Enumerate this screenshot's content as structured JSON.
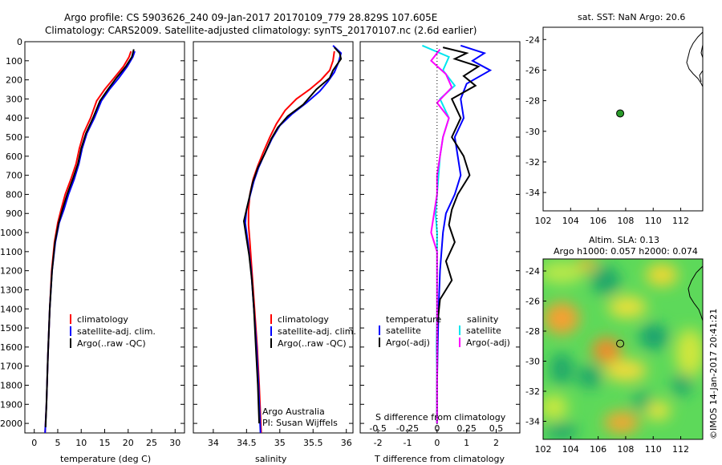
{
  "header": {
    "title_line1": "Argo profile: CS 5903626_240 09-Jan-2017 20170109_779 28.829S 107.605E",
    "title_line2": "Climatology: CARS2009. Satellite-adjusted climatology: synTS_20170107.nc (2.6d earlier)"
  },
  "colors": {
    "climatology": "#ff0000",
    "satellite": "#0000ff",
    "argo": "#000000",
    "sat_salinity": "#00e5ee",
    "argo_salinity": "#ff00ff",
    "float_marker": "#2a9a2a"
  },
  "chart_data": [
    {
      "type": "line",
      "id": "temperature",
      "xlabel": "temperature (deg C)",
      "ylabel": "",
      "xlim": [
        -2,
        32
      ],
      "ylim": [
        2050,
        0
      ],
      "xticks": [
        0,
        5,
        10,
        15,
        20,
        25,
        30
      ],
      "yticks": [
        0,
        100,
        200,
        300,
        400,
        500,
        600,
        700,
        800,
        900,
        1000,
        1100,
        1200,
        1300,
        1400,
        1500,
        1600,
        1700,
        1800,
        1900,
        2000
      ],
      "legend": [
        "climatology",
        "satellite-adj. clim.",
        "Argo(..raw -QC)"
      ],
      "series": [
        {
          "name": "climatology",
          "color": "#ff0000",
          "points": [
            [
              20.6,
              50
            ],
            [
              20.2,
              80
            ],
            [
              19.0,
              130
            ],
            [
              17.0,
              190
            ],
            [
              15.0,
              250
            ],
            [
              13.3,
              310
            ],
            [
              12.0,
              400
            ],
            [
              10.5,
              480
            ],
            [
              9.6,
              560
            ],
            [
              8.9,
              640
            ],
            [
              7.8,
              720
            ],
            [
              6.6,
              800
            ],
            [
              5.7,
              880
            ],
            [
              5.0,
              950
            ],
            [
              4.3,
              1050
            ],
            [
              3.7,
              1200
            ],
            [
              3.3,
              1400
            ],
            [
              2.9,
              1650
            ],
            [
              2.6,
              1900
            ],
            [
              2.3,
              2050
            ]
          ]
        },
        {
          "name": "satellite-adj. clim.",
          "color": "#0000ff",
          "points": [
            [
              21.4,
              50
            ],
            [
              21.0,
              80
            ],
            [
              19.8,
              130
            ],
            [
              18.0,
              190
            ],
            [
              16.0,
              250
            ],
            [
              14.3,
              310
            ],
            [
              12.8,
              400
            ],
            [
              11.2,
              480
            ],
            [
              10.2,
              560
            ],
            [
              9.5,
              640
            ],
            [
              8.5,
              720
            ],
            [
              7.3,
              800
            ],
            [
              6.3,
              880
            ],
            [
              5.3,
              950
            ],
            [
              4.5,
              1050
            ],
            [
              3.8,
              1200
            ],
            [
              3.3,
              1400
            ],
            [
              2.9,
              1650
            ],
            [
              2.6,
              1900
            ],
            [
              2.3,
              2050
            ]
          ]
        },
        {
          "name": "Argo(..raw -QC)",
          "color": "#000000",
          "points": [
            [
              21.2,
              40
            ],
            [
              20.8,
              80
            ],
            [
              19.5,
              130
            ],
            [
              17.5,
              190
            ],
            [
              15.7,
              250
            ],
            [
              14.0,
              310
            ],
            [
              12.5,
              400
            ],
            [
              11.0,
              480
            ],
            [
              10.0,
              560
            ],
            [
              9.3,
              640
            ],
            [
              8.2,
              720
            ],
            [
              7.0,
              800
            ],
            [
              6.0,
              880
            ],
            [
              5.2,
              950
            ],
            [
              4.4,
              1050
            ],
            [
              3.8,
              1200
            ],
            [
              3.3,
              1400
            ],
            [
              2.9,
              1650
            ],
            [
              2.6,
              1900
            ],
            [
              2.4,
              2020
            ]
          ]
        }
      ]
    },
    {
      "type": "line",
      "id": "salinity",
      "xlabel": "salinity",
      "ylabel": "",
      "xlim": [
        33.7,
        36.1
      ],
      "ylim": [
        2050,
        0
      ],
      "xticks": [
        34,
        34.5,
        35,
        35.5,
        36
      ],
      "xticklabels": [
        "34",
        "34.5",
        "35",
        "35.5",
        "36"
      ],
      "legend": [
        "climatology",
        "satellite-adj. clim.",
        "Argo(..raw -QC)"
      ],
      "annotations": [
        "Argo Australia",
        "PI: Susan Wijffels"
      ],
      "series": [
        {
          "name": "climatology",
          "color": "#ff0000",
          "points": [
            [
              35.82,
              50
            ],
            [
              35.8,
              100
            ],
            [
              35.75,
              150
            ],
            [
              35.62,
              200
            ],
            [
              35.45,
              250
            ],
            [
              35.25,
              300
            ],
            [
              35.08,
              360
            ],
            [
              34.95,
              430
            ],
            [
              34.85,
              500
            ],
            [
              34.75,
              580
            ],
            [
              34.67,
              650
            ],
            [
              34.6,
              720
            ],
            [
              34.55,
              800
            ],
            [
              34.53,
              880
            ],
            [
              34.53,
              960
            ],
            [
              34.55,
              1050
            ],
            [
              34.58,
              1200
            ],
            [
              34.62,
              1400
            ],
            [
              34.66,
              1600
            ],
            [
              34.69,
              1800
            ],
            [
              34.72,
              2050
            ]
          ]
        },
        {
          "name": "satellite-adj. clim.",
          "color": "#0000ff",
          "points": [
            [
              35.8,
              20
            ],
            [
              35.92,
              60
            ],
            [
              35.88,
              110
            ],
            [
              35.82,
              160
            ],
            [
              35.72,
              210
            ],
            [
              35.6,
              260
            ],
            [
              35.4,
              320
            ],
            [
              35.18,
              380
            ],
            [
              35.0,
              440
            ],
            [
              34.88,
              510
            ],
            [
              34.77,
              590
            ],
            [
              34.68,
              660
            ],
            [
              34.61,
              730
            ],
            [
              34.55,
              810
            ],
            [
              34.5,
              880
            ],
            [
              34.48,
              950
            ],
            [
              34.52,
              1050
            ],
            [
              34.57,
              1200
            ],
            [
              34.61,
              1400
            ],
            [
              34.65,
              1600
            ],
            [
              34.68,
              1800
            ],
            [
              34.71,
              2050
            ]
          ]
        },
        {
          "name": "Argo(..raw -QC)",
          "color": "#000000",
          "points": [
            [
              35.82,
              30
            ],
            [
              35.9,
              60
            ],
            [
              35.92,
              90
            ],
            [
              35.8,
              150
            ],
            [
              35.75,
              190
            ],
            [
              35.55,
              250
            ],
            [
              35.35,
              330
            ],
            [
              35.12,
              390
            ],
            [
              34.97,
              450
            ],
            [
              34.87,
              510
            ],
            [
              34.77,
              590
            ],
            [
              34.67,
              660
            ],
            [
              34.59,
              740
            ],
            [
              34.54,
              820
            ],
            [
              34.5,
              880
            ],
            [
              34.46,
              940
            ],
            [
              34.49,
              1010
            ],
            [
              34.54,
              1120
            ],
            [
              34.58,
              1250
            ],
            [
              34.61,
              1400
            ],
            [
              34.64,
              1600
            ],
            [
              34.67,
              1800
            ],
            [
              34.69,
              2000
            ]
          ]
        }
      ]
    },
    {
      "type": "line",
      "id": "difference",
      "xlabel": "T difference from climatology",
      "xlabel_top": "S difference from climatology",
      "xlim": [
        -2.6,
        2.8
      ],
      "ylim": [
        2050,
        0
      ],
      "xticks": [
        -2,
        -1,
        0,
        1,
        2
      ],
      "top_ticks": [
        -0.5,
        -0.25,
        0,
        0.25,
        0.5
      ],
      "legend_left": {
        "heading": "temperature",
        "items": [
          "satellite",
          "Argo(-adj)"
        ]
      },
      "legend_right": {
        "heading": "salinity",
        "items": [
          "satellite",
          "Argo(-adj)"
        ]
      },
      "series": [
        {
          "name": "temperature satellite",
          "color": "#0000ff",
          "points": [
            [
              0.8,
              20
            ],
            [
              1.6,
              60
            ],
            [
              1.2,
              100
            ],
            [
              1.8,
              150
            ],
            [
              1.0,
              220
            ],
            [
              0.8,
              300
            ],
            [
              0.9,
              400
            ],
            [
              0.6,
              500
            ],
            [
              0.7,
              600
            ],
            [
              0.8,
              700
            ],
            [
              0.6,
              800
            ],
            [
              0.3,
              900
            ],
            [
              0.2,
              1000
            ],
            [
              0.1,
              1200
            ],
            [
              0.05,
              1400
            ],
            [
              0.02,
              1600
            ],
            [
              0,
              1800
            ],
            [
              0,
              2000
            ]
          ]
        },
        {
          "name": "temperature Argo(-adj)",
          "color": "#000000",
          "points": [
            [
              0.2,
              30
            ],
            [
              1.0,
              60
            ],
            [
              0.6,
              90
            ],
            [
              1.4,
              130
            ],
            [
              0.9,
              180
            ],
            [
              1.3,
              230
            ],
            [
              0.5,
              300
            ],
            [
              0.8,
              400
            ],
            [
              0.5,
              500
            ],
            [
              0.9,
              600
            ],
            [
              1.1,
              700
            ],
            [
              0.7,
              800
            ],
            [
              0.5,
              880
            ],
            [
              0.4,
              960
            ],
            [
              0.6,
              1050
            ],
            [
              0.3,
              1150
            ],
            [
              0.5,
              1250
            ],
            [
              0.1,
              1350
            ],
            [
              0.0,
              1500
            ],
            [
              0.0,
              1700
            ],
            [
              0.0,
              1900
            ],
            [
              0.0,
              2000
            ]
          ]
        },
        {
          "name": "salinity satellite",
          "color": "#00e5ee",
          "points": [
            [
              -0.5,
              20
            ],
            [
              0.4,
              80
            ],
            [
              0.2,
              150
            ],
            [
              0.6,
              230
            ],
            [
              0.1,
              300
            ],
            [
              0.4,
              400
            ],
            [
              0.2,
              500
            ],
            [
              0.1,
              600
            ],
            [
              0.05,
              700
            ],
            [
              0,
              800
            ],
            [
              -0.05,
              900
            ],
            [
              0,
              1000
            ],
            [
              0,
              1200
            ],
            [
              0,
              1400
            ],
            [
              -0.02,
              1600
            ],
            [
              0,
              1800
            ],
            [
              0,
              2000
            ]
          ]
        },
        {
          "name": "salinity Argo(-adj)",
          "color": "#ff00ff",
          "points": [
            [
              0.1,
              40
            ],
            [
              -0.2,
              100
            ],
            [
              0.3,
              170
            ],
            [
              0.5,
              240
            ],
            [
              0.0,
              320
            ],
            [
              0.4,
              400
            ],
            [
              0.2,
              500
            ],
            [
              0.1,
              600
            ],
            [
              0.0,
              700
            ],
            [
              0.0,
              800
            ],
            [
              -0.1,
              900
            ],
            [
              -0.2,
              1000
            ],
            [
              0.0,
              1100
            ],
            [
              0.0,
              1300
            ],
            [
              0.0,
              1500
            ],
            [
              0.0,
              1700
            ],
            [
              0.0,
              1900
            ],
            [
              0.0,
              2000
            ]
          ]
        }
      ]
    },
    {
      "type": "scatter",
      "id": "sst_map",
      "title": "sat. SST: NaN Argo: 20.6",
      "xlim": [
        102,
        113.6
      ],
      "ylim": [
        -35.2,
        -23.2
      ],
      "xticks": [
        102,
        104,
        106,
        108,
        110,
        112
      ],
      "yticks": [
        -24,
        -26,
        -28,
        -30,
        -32,
        -34
      ],
      "float": {
        "lon": 107.6,
        "lat": -28.83
      }
    },
    {
      "type": "heatmap",
      "id": "sla_map",
      "title_line1": "Altim. SLA: 0.13",
      "title_line2": "Argo h1000: 0.057 h2000: 0.074",
      "xlim": [
        102,
        113.6
      ],
      "ylim": [
        -35.2,
        -23.2
      ],
      "xticks": [
        102,
        104,
        106,
        108,
        110,
        112
      ],
      "yticks": [
        -24,
        -26,
        -28,
        -30,
        -32,
        -34
      ],
      "float": {
        "lon": 107.6,
        "lat": -28.83
      }
    }
  ],
  "footer": {
    "timestamp": "©IMOS 14-Jan-2017 20:41:21"
  }
}
